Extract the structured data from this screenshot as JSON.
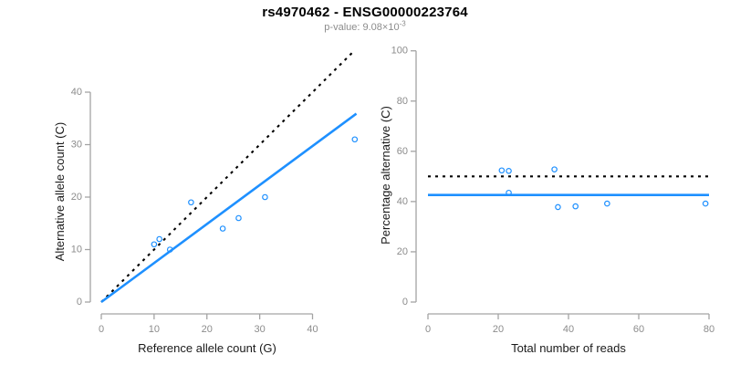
{
  "header": {
    "title": "rs4970462 - ENSG00000223764",
    "pvalue_label": "p-value: 9.08×10",
    "pvalue_exponent": "-3"
  },
  "colors": {
    "accent_blue": "#1E90FF",
    "dotted_black": "#000000",
    "axis_line_gray": "#A3A3A3",
    "tick_label_gray": "#8C8C8C",
    "axis_title_color": "#1A1A1A"
  },
  "chart_data": [
    {
      "type": "scatter",
      "title": "",
      "xlabel": "Reference allele count (G)",
      "ylabel": "Alternative allele count (C)",
      "xticks": [
        0,
        10,
        20,
        30,
        40
      ],
      "yticks": [
        0,
        10,
        20,
        30,
        40
      ],
      "xlim": [
        0,
        48.5
      ],
      "ylim": [
        0,
        48.5
      ],
      "grid": false,
      "points": [
        [
          10,
          11
        ],
        [
          11,
          12
        ],
        [
          13,
          10
        ],
        [
          17,
          19
        ],
        [
          23,
          14
        ],
        [
          26,
          16
        ],
        [
          31,
          20
        ],
        [
          48,
          31
        ]
      ],
      "lines": [
        {
          "name": "identity-line",
          "style": "dotted",
          "color": "#000000",
          "x1": 0,
          "y1": 0,
          "x2": 48,
          "y2": 48
        },
        {
          "name": "fit-line",
          "style": "solid",
          "color": "#1E90FF",
          "x1": 0,
          "y1": 0,
          "x2": 48.3,
          "y2": 35.9
        }
      ]
    },
    {
      "type": "scatter",
      "title": "",
      "xlabel": "Total number of reads",
      "ylabel": "Percentage alternative (C)",
      "xticks": [
        0,
        20,
        40,
        60,
        80
      ],
      "yticks": [
        0,
        20,
        40,
        60,
        80,
        100
      ],
      "xlim": [
        0,
        80
      ],
      "ylim": [
        0,
        100
      ],
      "grid": false,
      "points": [
        [
          21,
          52.4
        ],
        [
          23,
          52.2
        ],
        [
          23,
          43.5
        ],
        [
          36,
          52.8
        ],
        [
          37,
          37.8
        ],
        [
          42,
          38.1
        ],
        [
          51,
          39.2
        ],
        [
          79,
          39.2
        ]
      ],
      "lines": [
        {
          "name": "expected-50-line",
          "style": "dotted",
          "color": "#000000",
          "x1": 0,
          "y1": 50,
          "x2": 80,
          "y2": 50
        },
        {
          "name": "fit-line",
          "style": "solid",
          "color": "#1E90FF",
          "x1": 0,
          "y1": 42.6,
          "x2": 80,
          "y2": 42.6
        }
      ]
    }
  ]
}
